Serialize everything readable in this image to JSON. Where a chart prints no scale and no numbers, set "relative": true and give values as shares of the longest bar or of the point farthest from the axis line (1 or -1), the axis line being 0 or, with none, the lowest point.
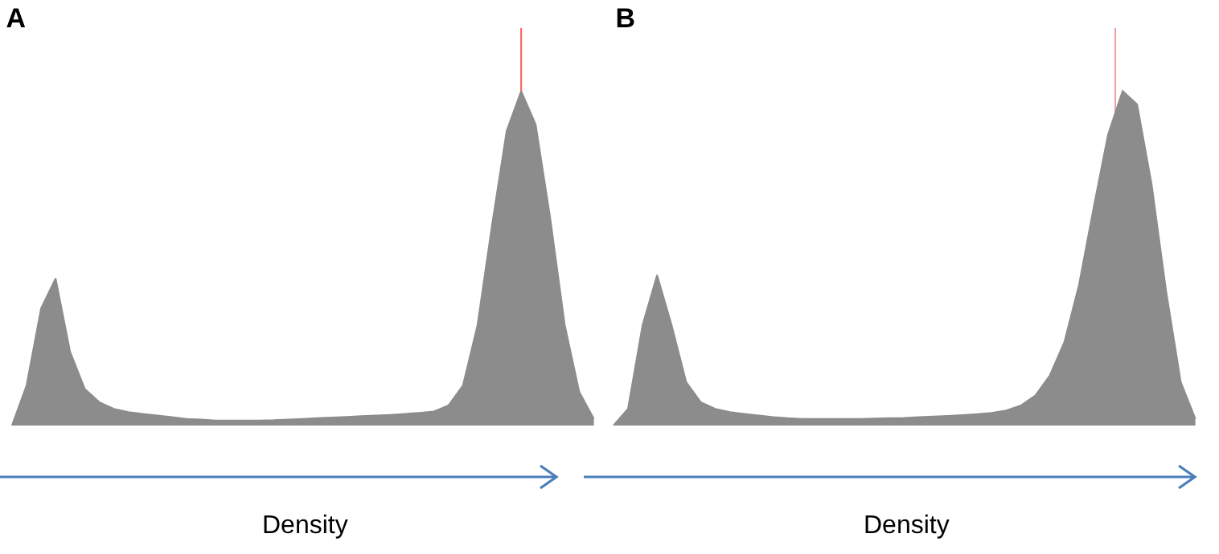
{
  "chart_data": [
    {
      "type": "area",
      "title": "A",
      "xlabel": "Density",
      "relative": true,
      "categories": [
        null,
        null,
        null,
        null,
        null,
        null,
        null,
        null,
        null,
        null,
        null,
        null,
        null,
        null,
        null,
        null,
        null,
        null,
        null,
        null,
        null,
        null,
        null,
        null,
        null,
        null,
        null,
        null,
        null,
        null,
        null,
        null,
        null,
        null,
        null,
        null,
        null,
        null,
        null,
        null,
        null
      ],
      "series": [
        {
          "color": "#8c8c8c",
          "values": [
            0,
            0.12,
            0.35,
            0.44,
            0.22,
            0.11,
            0.07,
            0.05,
            0.04,
            0.035,
            0.03,
            0.025,
            0.02,
            0.018,
            0.015,
            0.015,
            0.015,
            0.015,
            0.016,
            0.018,
            0.02,
            0.022,
            0.024,
            0.026,
            0.028,
            0.03,
            0.032,
            0.035,
            0.038,
            0.042,
            0.06,
            0.12,
            0.3,
            0.6,
            0.88,
            1.0,
            0.9,
            0.62,
            0.3,
            0.1,
            0.02
          ]
        }
      ]
    },
    {
      "type": "area",
      "title": "B",
      "xlabel": "Density",
      "relative": true,
      "categories": [
        null,
        null,
        null,
        null,
        null,
        null,
        null,
        null,
        null,
        null,
        null,
        null,
        null,
        null,
        null,
        null,
        null,
        null,
        null,
        null,
        null,
        null,
        null,
        null,
        null,
        null,
        null,
        null,
        null,
        null,
        null,
        null,
        null,
        null,
        null,
        null,
        null,
        null,
        null,
        null,
        null
      ],
      "series": [
        {
          "color": "#8c8c8c",
          "values": [
            0,
            0.05,
            0.3,
            0.45,
            0.3,
            0.13,
            0.07,
            0.05,
            0.04,
            0.035,
            0.03,
            0.025,
            0.022,
            0.02,
            0.02,
            0.02,
            0.02,
            0.02,
            0.021,
            0.022,
            0.023,
            0.025,
            0.027,
            0.029,
            0.031,
            0.034,
            0.038,
            0.045,
            0.06,
            0.09,
            0.15,
            0.25,
            0.42,
            0.65,
            0.87,
            1,
            0.96,
            0.72,
            0.4,
            0.13,
            0.02
          ]
        }
      ]
    }
  ]
}
